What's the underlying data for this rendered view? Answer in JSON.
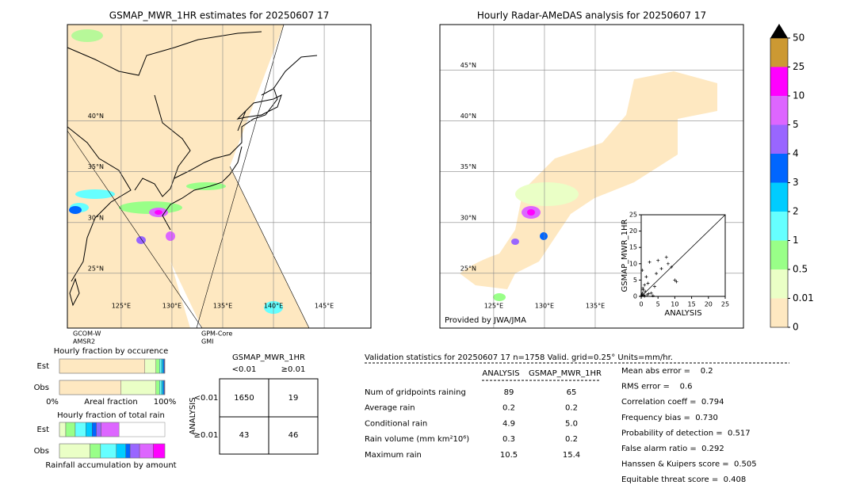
{
  "left_map": {
    "title": "GSMAP_MWR_1HR estimates for 20250607 17",
    "lon_range": [
      119.7,
      149.6
    ],
    "lat_range": [
      19.6,
      49.5
    ],
    "lon_ticks": [
      {
        "value": 125,
        "label": "125°E"
      },
      {
        "value": 130,
        "label": "130°E"
      },
      {
        "value": 135,
        "label": "135°E"
      },
      {
        "value": 140,
        "label": "140°E"
      },
      {
        "value": 145,
        "label": "145°E"
      }
    ],
    "lat_ticks": [
      {
        "value": 25,
        "label": "25°N"
      },
      {
        "value": 30,
        "label": "30°N"
      },
      {
        "value": 35,
        "label": "35°N"
      },
      {
        "value": 40,
        "label": "40°N"
      }
    ],
    "satellites": [
      [
        "GCOM-W",
        "AMSR2"
      ],
      [
        "GPM-Core",
        "GMI"
      ]
    ]
  },
  "right_map": {
    "title": "Hourly Radar-AMeDAS analysis for 20250607 17",
    "lon_range": [
      119.7,
      149.6
    ],
    "lat_range": [
      19.6,
      49.5
    ],
    "lon_ticks": [
      {
        "value": 125,
        "label": "125°E"
      },
      {
        "value": 130,
        "label": "130°E"
      },
      {
        "value": 135,
        "label": "135°E"
      }
    ],
    "lat_ticks": [
      {
        "value": 25,
        "label": "25°N"
      },
      {
        "value": 30,
        "label": "30°N"
      },
      {
        "value": 35,
        "label": "35°N"
      },
      {
        "value": 40,
        "label": "40°N"
      },
      {
        "value": 45,
        "label": "45°N"
      }
    ],
    "credit": "Provided by JWA/JMA"
  },
  "colorbar": {
    "levels": [
      0,
      0.01,
      0.5,
      1,
      2,
      3,
      4,
      5,
      10,
      25,
      50
    ],
    "colors": [
      "#fee8c1",
      "#eaffc6",
      "#99ff88",
      "#66ffff",
      "#00ccff",
      "#0066ff",
      "#9966ff",
      "#dd66ff",
      "#ff00ff",
      "#cc9933"
    ],
    "extend_color": "#000000"
  },
  "scatter": {
    "type": "scatter",
    "xlabel": "ANALYSIS",
    "ylabel": "GSMAP_MWR_1HR",
    "xlim": [
      0,
      25
    ],
    "ylim": [
      0,
      25
    ],
    "xticks": [
      0,
      5,
      10,
      15,
      20,
      25
    ],
    "yticks": [
      0,
      5,
      10,
      15,
      20,
      25
    ],
    "x": [
      0.2,
      0.4,
      0.6,
      0.8,
      1.0,
      1.2,
      1.5,
      0.3,
      0.5,
      2.0,
      2.5,
      3.0,
      1.8,
      4.0,
      4.5,
      5.0,
      6.0,
      7.5,
      8.0,
      9.0,
      10.0,
      10.5,
      3.5,
      2.2,
      1.0,
      0.1
    ],
    "y": [
      0.5,
      1.0,
      2.0,
      0.3,
      3.5,
      1.5,
      6.0,
      8.0,
      2.5,
      4.0,
      10.5,
      1.0,
      0.5,
      3.0,
      7.0,
      11.0,
      8.5,
      12.0,
      10.0,
      9.0,
      5.0,
      4.5,
      0.2,
      0.8,
      0.1,
      0.2
    ]
  },
  "occurrence": {
    "title": "Hourly fraction by occurence",
    "rows": [
      {
        "name": "Est",
        "values": [
          81,
          10.5,
          3.5,
          2,
          1.5,
          1,
          0.5,
          0,
          0,
          0
        ]
      },
      {
        "name": "Obs",
        "values": [
          58.5,
          33,
          3.5,
          2,
          1.5,
          1,
          0.5,
          0,
          0,
          0
        ]
      }
    ],
    "xlabel": "Areal fraction",
    "x_left": "0%",
    "x_right": "100%"
  },
  "total_rain": {
    "title": "Hourly fraction of total rain",
    "rows": [
      {
        "name": "Est",
        "values": [
          0,
          6,
          9,
          10,
          6,
          4,
          4.5,
          17,
          0,
          0
        ]
      },
      {
        "name": "Obs",
        "values": [
          0,
          29,
          10,
          15,
          9,
          4,
          9,
          13,
          11,
          0
        ]
      }
    ],
    "xlabel": "Rainfall accumulation by amount"
  },
  "contingency": {
    "title": "GSMAP_MWR_1HR",
    "col_labels": [
      "<0.01",
      "≥0.01"
    ],
    "row_axis": "ANALYSIS",
    "row_labels": [
      "<0.01",
      "≥0.01"
    ],
    "cells": [
      [
        "1650",
        "19"
      ],
      [
        "43",
        "46"
      ]
    ]
  },
  "validation": {
    "header": "Validation statistics for 20250607 17  n=1758 Valid. grid=0.25° Units=mm/hr.",
    "columns": [
      "ANALYSIS",
      "GSMAP_MWR_1HR"
    ],
    "rows": [
      {
        "label": "Num of gridpoints raining",
        "values": [
          "89",
          "65"
        ]
      },
      {
        "label": "Average rain",
        "values": [
          "0.2",
          "0.2"
        ]
      },
      {
        "label": "Conditional rain",
        "values": [
          "4.9",
          "5.0"
        ]
      },
      {
        "label": "Rain volume (mm km²10⁶)",
        "values": [
          "0.3",
          "0.2"
        ]
      },
      {
        "label": "Maximum rain",
        "values": [
          "10.5",
          "15.4"
        ]
      }
    ],
    "scores": [
      "Mean abs error =    0.2",
      "RMS error =    0.6",
      "Correlation coeff =  0.794",
      "Frequency bias =  0.730",
      "Probability of detection =  0.517",
      "False alarm ratio =  0.292",
      "Hanssen & Kuipers score =  0.505",
      "Equitable threat score =  0.408"
    ]
  }
}
